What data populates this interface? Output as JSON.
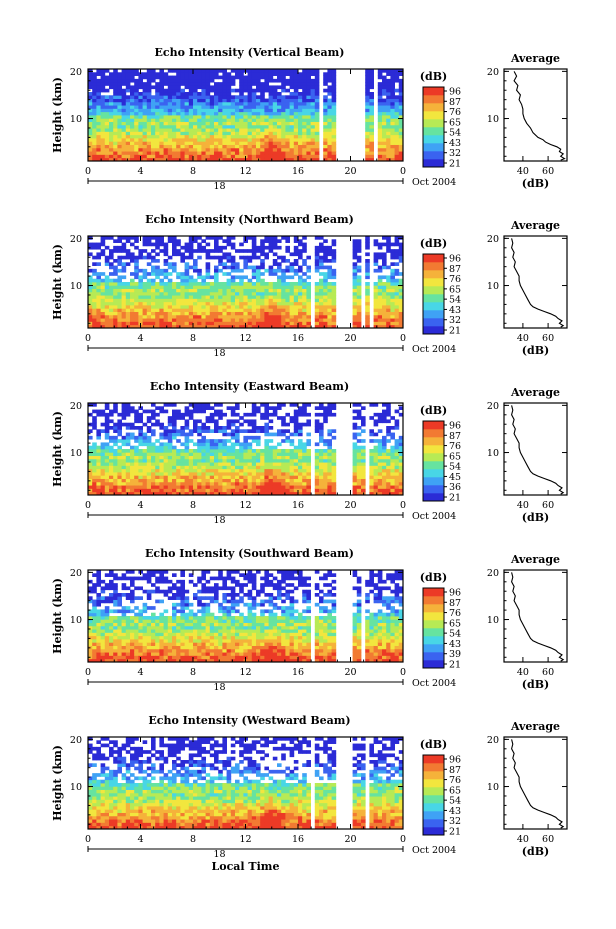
{
  "colorbar": {
    "unit": "(dB)",
    "labels": [
      [
        "96",
        "87",
        "76",
        "65",
        "54",
        "43",
        "32",
        "21"
      ],
      [
        "96",
        "87",
        "76",
        "65",
        "54",
        "43",
        "32",
        "21"
      ],
      [
        "96",
        "87",
        "76",
        "65",
        "54",
        "45",
        "36",
        "21"
      ],
      [
        "96",
        "87",
        "76",
        "65",
        "54",
        "43",
        "39",
        "21"
      ],
      [
        "96",
        "87",
        "76",
        "65",
        "54",
        "43",
        "32",
        "21"
      ]
    ],
    "colors": [
      "#2b2bd6",
      "#3a63f0",
      "#3fa2f5",
      "#48d6e6",
      "#66e3a0",
      "#b7ea55",
      "#f2e63e",
      "#f5b23a",
      "#f27a32",
      "#ec3a26"
    ]
  },
  "chart_data": [
    {
      "type": "heatmap",
      "title": "Echo Intensity (Vertical Beam)",
      "xlabel": "",
      "ylabel": "Height (km)",
      "x_ticks": [
        "0",
        "4",
        "8",
        "12",
        "16",
        "20",
        "0"
      ],
      "y_ticks": [
        "20",
        "10"
      ],
      "date_mark": "18",
      "date_label": "Oct 2004",
      "xlim": [
        0,
        24
      ],
      "ylim": [
        1,
        20.5
      ],
      "data_gaps_hours": [
        [
          7.9,
          8.1
        ],
        [
          17.5,
          17.8
        ],
        [
          19.0,
          21.1
        ],
        [
          21.7,
          22.0
        ]
      ],
      "storm_hour": 14,
      "profile": {
        "title": "Average",
        "xlabel": "(dB)",
        "x_ticks": [
          "40",
          "60"
        ],
        "xlim": [
          25,
          75
        ],
        "y_ticks": [
          "20",
          "10"
        ],
        "height_km": [
          1.2,
          1.5,
          2.0,
          2.5,
          3.0,
          3.5,
          4.0,
          4.5,
          5.0,
          5.5,
          6.0,
          7.0,
          8.0,
          9.0,
          10.0,
          11.0,
          12.0,
          13.0,
          14.0,
          15.0,
          16.0,
          17.0,
          18.0,
          19.0,
          20.0
        ],
        "db": [
          70,
          73,
          70,
          72,
          69,
          70,
          67,
          62,
          58,
          56,
          52,
          48,
          46,
          43,
          41,
          40,
          40,
          39,
          37,
          38,
          35,
          36,
          33,
          35,
          33
        ]
      }
    },
    {
      "type": "heatmap",
      "title": "Echo Intensity (Northward Beam)",
      "xlabel": "",
      "ylabel": "Height (km)",
      "x_ticks": [
        "0",
        "4",
        "8",
        "12",
        "16",
        "20",
        "0"
      ],
      "y_ticks": [
        "20",
        "10"
      ],
      "date_mark": "18",
      "date_label": "Oct 2004",
      "xlim": [
        0,
        24
      ],
      "ylim": [
        1,
        20.5
      ],
      "data_gaps_hours": [
        [
          7.9,
          8.1
        ],
        [
          17.0,
          17.3
        ],
        [
          19.0,
          20.1
        ],
        [
          20.8,
          21.0
        ],
        [
          21.6,
          21.8
        ]
      ],
      "storm_hour": 14,
      "profile": {
        "title": "Average",
        "xlabel": "(dB)",
        "x_ticks": [
          "40",
          "60"
        ],
        "xlim": [
          25,
          75
        ],
        "y_ticks": [
          "20",
          "10"
        ],
        "height_km": [
          1.2,
          1.5,
          2.0,
          2.5,
          3.0,
          3.5,
          4.0,
          4.5,
          5.0,
          5.5,
          6.0,
          7.0,
          8.0,
          9.0,
          10.0,
          11.0,
          12.0,
          13.0,
          14.0,
          15.0,
          16.0,
          17.0,
          18.0,
          19.0,
          20.0
        ],
        "db": [
          70,
          72,
          69,
          71,
          68,
          66,
          62,
          57,
          52,
          48,
          46,
          44,
          42,
          40,
          38,
          37,
          37,
          35,
          33,
          34,
          32,
          33,
          31,
          32,
          31
        ]
      }
    },
    {
      "type": "heatmap",
      "title": "Echo Intensity (Eastward Beam)",
      "xlabel": "",
      "ylabel": "Height (km)",
      "x_ticks": [
        "0",
        "4",
        "8",
        "12",
        "16",
        "20",
        "0"
      ],
      "y_ticks": [
        "20",
        "10"
      ],
      "date_mark": "18",
      "date_label": "Oct 2004",
      "xlim": [
        0,
        24
      ],
      "ylim": [
        1,
        20.5
      ],
      "data_gaps_hours": [
        [
          7.9,
          8.1
        ],
        [
          17.1,
          17.4
        ],
        [
          19.0,
          20.1
        ],
        [
          21.1,
          21.4
        ]
      ],
      "storm_hour": 14,
      "profile": {
        "title": "Average",
        "xlabel": "(dB)",
        "x_ticks": [
          "40",
          "60"
        ],
        "xlim": [
          25,
          75
        ],
        "y_ticks": [
          "20",
          "10"
        ],
        "height_km": [
          1.2,
          1.5,
          2.0,
          2.5,
          3.0,
          3.5,
          4.0,
          4.5,
          5.0,
          5.5,
          6.0,
          7.0,
          8.0,
          9.0,
          10.0,
          11.0,
          12.0,
          13.0,
          14.0,
          15.0,
          16.0,
          17.0,
          18.0,
          19.0,
          20.0
        ],
        "db": [
          70,
          72,
          69,
          71,
          68,
          66,
          62,
          57,
          52,
          48,
          46,
          44,
          42,
          40,
          38,
          37,
          37,
          35,
          33,
          34,
          32,
          33,
          31,
          32,
          31
        ]
      }
    },
    {
      "type": "heatmap",
      "title": "Echo Intensity (Southward Beam)",
      "xlabel": "",
      "ylabel": "Height (km)",
      "x_ticks": [
        "0",
        "4",
        "8",
        "12",
        "16",
        "20",
        "0"
      ],
      "y_ticks": [
        "20",
        "10"
      ],
      "date_mark": "18",
      "date_label": "Oct 2004",
      "xlim": [
        0,
        24
      ],
      "ylim": [
        1,
        20.5
      ],
      "data_gaps_hours": [
        [
          7.9,
          8.1
        ],
        [
          17.1,
          17.4
        ],
        [
          19.0,
          20.1
        ],
        [
          20.9,
          21.2
        ]
      ],
      "storm_hour": 14,
      "profile": {
        "title": "Average",
        "xlabel": "(dB)",
        "x_ticks": [
          "40",
          "60"
        ],
        "xlim": [
          25,
          75
        ],
        "y_ticks": [
          "20",
          "10"
        ],
        "height_km": [
          1.2,
          1.5,
          2.0,
          2.5,
          3.0,
          3.5,
          4.0,
          4.5,
          5.0,
          5.5,
          6.0,
          7.0,
          8.0,
          9.0,
          10.0,
          11.0,
          12.0,
          13.0,
          14.0,
          15.0,
          16.0,
          17.0,
          18.0,
          19.0,
          20.0
        ],
        "db": [
          70,
          72,
          69,
          71,
          68,
          66,
          62,
          57,
          52,
          48,
          46,
          44,
          42,
          40,
          38,
          37,
          37,
          35,
          33,
          34,
          32,
          33,
          31,
          32,
          31
        ]
      }
    },
    {
      "type": "heatmap",
      "title": "Echo Intensity (Westward Beam)",
      "xlabel": "Local Time",
      "ylabel": "Height (km)",
      "x_ticks": [
        "0",
        "4",
        "8",
        "12",
        "16",
        "20",
        "0"
      ],
      "y_ticks": [
        "20",
        "10"
      ],
      "date_mark": "18",
      "date_label": "Oct 2004",
      "xlim": [
        0,
        24
      ],
      "ylim": [
        1,
        20.5
      ],
      "data_gaps_hours": [
        [
          7.9,
          8.1
        ],
        [
          17.1,
          17.4
        ],
        [
          19.0,
          20.1
        ],
        [
          21.1,
          21.4
        ]
      ],
      "storm_hour": 14,
      "profile": {
        "title": "Average",
        "xlabel": "(dB)",
        "x_ticks": [
          "40",
          "60"
        ],
        "xlim": [
          25,
          75
        ],
        "y_ticks": [
          "20",
          "10"
        ],
        "height_km": [
          1.2,
          1.5,
          2.0,
          2.5,
          3.0,
          3.5,
          4.0,
          4.5,
          5.0,
          5.5,
          6.0,
          7.0,
          8.0,
          9.0,
          10.0,
          11.0,
          12.0,
          13.0,
          14.0,
          15.0,
          16.0,
          17.0,
          18.0,
          19.0,
          20.0
        ],
        "db": [
          70,
          72,
          69,
          71,
          68,
          66,
          62,
          57,
          52,
          48,
          46,
          44,
          42,
          40,
          38,
          37,
          37,
          35,
          33,
          34,
          32,
          33,
          31,
          32,
          31
        ]
      }
    }
  ]
}
